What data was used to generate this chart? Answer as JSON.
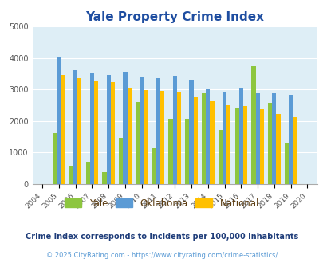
{
  "title": "Yale Property Crime Index",
  "years": [
    "2004",
    "2005",
    "2006",
    "2007",
    "2008",
    "2009",
    "2010",
    "2011",
    "2012",
    "2013",
    "2014",
    "2015",
    "2016",
    "2017",
    "2018",
    "2019",
    "2020"
  ],
  "yale": [
    0,
    1620,
    580,
    700,
    370,
    1460,
    2600,
    1130,
    2060,
    2060,
    2870,
    1720,
    2390,
    3730,
    2580,
    1280,
    0
  ],
  "oklahoma": [
    0,
    4040,
    3610,
    3540,
    3450,
    3570,
    3420,
    3360,
    3430,
    3300,
    3010,
    2940,
    3020,
    2890,
    2880,
    2840,
    0
  ],
  "national": [
    0,
    3460,
    3350,
    3260,
    3220,
    3060,
    2970,
    2960,
    2920,
    2760,
    2620,
    2510,
    2470,
    2370,
    2210,
    2120,
    0
  ],
  "yale_color": "#8dc63f",
  "oklahoma_color": "#5b9bd5",
  "national_color": "#ffc000",
  "bg_color": "#deeef6",
  "title_color": "#1f4ea1",
  "ylabel_max": 5000,
  "yticks": [
    0,
    1000,
    2000,
    3000,
    4000,
    5000
  ],
  "subtitle": "Crime Index corresponds to incidents per 100,000 inhabitants",
  "footer": "© 2025 CityRating.com - https://www.cityrating.com/crime-statistics/",
  "subtitle_color": "#1f3d7a",
  "footer_color": "#5b9bd5",
  "legend_label_color": "#5b3c11",
  "bar_width": 0.25
}
